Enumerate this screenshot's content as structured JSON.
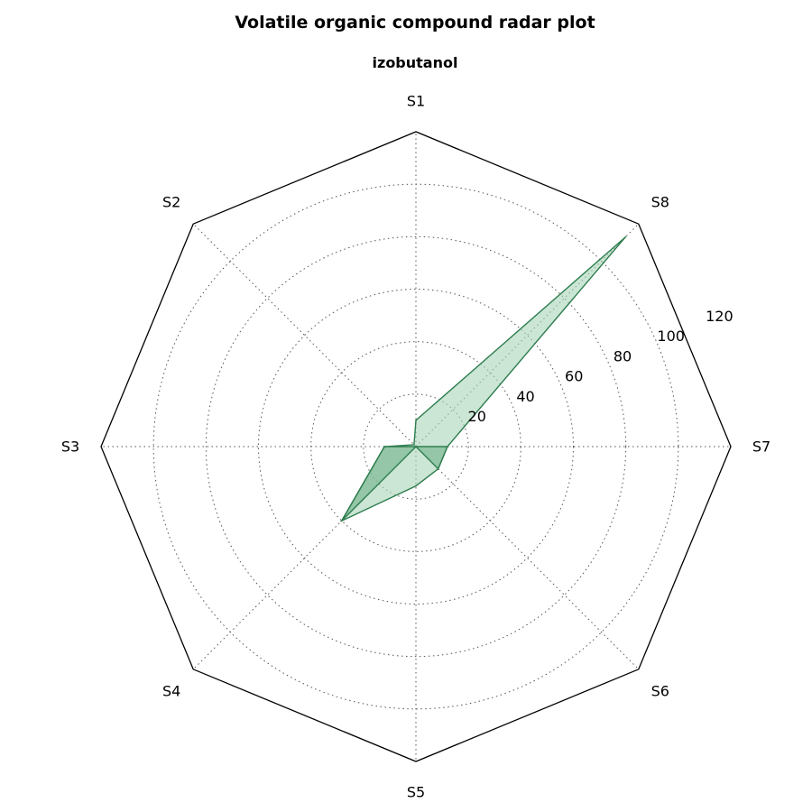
{
  "chart_data": {
    "type": "radar",
    "title": "Volatile organic compound radar plot",
    "subtitle": "izobutanol",
    "categories": [
      "S1",
      "S2",
      "S3",
      "S4",
      "S5",
      "S6",
      "S7",
      "S8"
    ],
    "series": [
      {
        "values": [
          10,
          1,
          12,
          40,
          15,
          12,
          12,
          113
        ]
      },
      {
        "values": [
          0,
          0,
          12,
          40,
          0,
          12,
          12,
          0
        ]
      }
    ],
    "radial_ticks": [
      20,
      40,
      60,
      80,
      100,
      120
    ],
    "rlim": [
      0,
      120
    ],
    "grid": true,
    "colors": {
      "line": "#2e7d4f",
      "fill_light": "#a8d5b8",
      "fill_dark": "#6fb088",
      "grid": "#555555",
      "frame": "#000000"
    }
  }
}
